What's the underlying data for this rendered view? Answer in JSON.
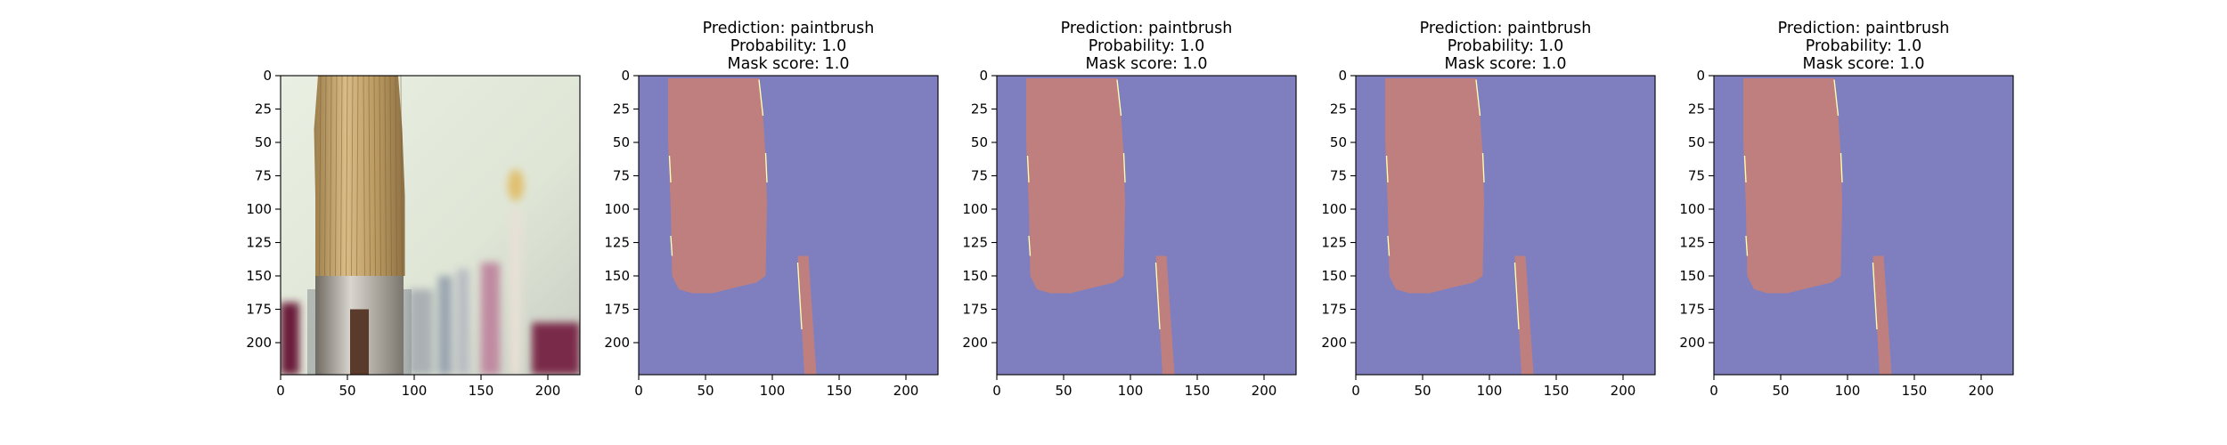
{
  "chart_data": [
    {
      "type": "image",
      "panel": "original-image",
      "title_lines": [],
      "xlim": [
        0,
        224
      ],
      "ylim": [
        224,
        0
      ],
      "xticks": [
        0,
        50,
        100,
        150,
        200
      ],
      "yticks": [
        0,
        25,
        50,
        75,
        100,
        125,
        150,
        175,
        200
      ],
      "content": "photo of paintbrush in holder"
    },
    {
      "type": "image",
      "panel": "mask-overlay-1",
      "title_lines": [
        "Prediction: paintbrush",
        "Probability: 1.0",
        "Mask score: 1.0"
      ],
      "xlim": [
        0,
        224
      ],
      "ylim": [
        224,
        0
      ],
      "xticks": [
        0,
        50,
        100,
        150,
        200
      ],
      "yticks": [
        0,
        25,
        50,
        75,
        100,
        125,
        150,
        175,
        200
      ]
    },
    {
      "type": "image",
      "panel": "mask-overlay-2",
      "title_lines": [
        "Prediction: paintbrush",
        "Probability: 1.0",
        "Mask score: 1.0"
      ],
      "xlim": [
        0,
        224
      ],
      "ylim": [
        224,
        0
      ],
      "xticks": [
        0,
        50,
        100,
        150,
        200
      ],
      "yticks": [
        0,
        25,
        50,
        75,
        100,
        125,
        150,
        175,
        200
      ]
    },
    {
      "type": "image",
      "panel": "mask-overlay-3",
      "title_lines": [
        "Prediction: paintbrush",
        "Probability: 1.0",
        "Mask score: 1.0"
      ],
      "xlim": [
        0,
        224
      ],
      "ylim": [
        224,
        0
      ],
      "xticks": [
        0,
        50,
        100,
        150,
        200
      ],
      "yticks": [
        0,
        25,
        50,
        75,
        100,
        125,
        150,
        175,
        200
      ]
    },
    {
      "type": "image",
      "panel": "mask-overlay-4",
      "title_lines": [
        "Prediction: paintbrush",
        "Probability: 1.0",
        "Mask score: 1.0"
      ],
      "xlim": [
        0,
        224
      ],
      "ylim": [
        224,
        0
      ],
      "xticks": [
        0,
        50,
        100,
        150,
        200
      ],
      "yticks": [
        0,
        25,
        50,
        75,
        100,
        125,
        150,
        175,
        200
      ]
    }
  ],
  "colors": {
    "background_mask": "#7f7fbf",
    "object_mask": "#bf7f7f",
    "mask_edge": "#ffffb0"
  },
  "mask_shapes": {
    "brush_polygon": [
      [
        22,
        2
      ],
      [
        90,
        2
      ],
      [
        93,
        30
      ],
      [
        95,
        60
      ],
      [
        96,
        95
      ],
      [
        95,
        150
      ],
      [
        88,
        155
      ],
      [
        75,
        158
      ],
      [
        55,
        163
      ],
      [
        40,
        163
      ],
      [
        30,
        160
      ],
      [
        25,
        150
      ],
      [
        24,
        100
      ],
      [
        22,
        50
      ]
    ],
    "handle_polygon": [
      [
        119,
        135
      ],
      [
        127,
        135
      ],
      [
        133,
        224
      ],
      [
        124,
        224
      ]
    ]
  }
}
